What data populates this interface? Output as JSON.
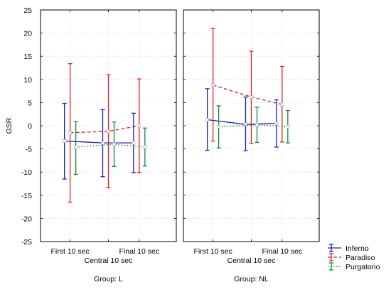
{
  "chart_data": {
    "type": "line",
    "ylabel": "GSR",
    "ylim": [
      -25,
      25
    ],
    "yticks": [
      -25,
      -20,
      -15,
      -10,
      -5,
      0,
      5,
      10,
      15,
      20,
      25
    ],
    "grid": true,
    "categories": [
      "First 10 sec",
      "Central 10 sec",
      "Final 10 sec"
    ],
    "xlabel": "Central 10 sec",
    "legend": {
      "placement": "bottom-right",
      "entries": [
        "Inferno",
        "Paradiso",
        "Purgatorio"
      ]
    },
    "series_styles": {
      "Inferno": {
        "color": "#1a1acc",
        "dash": "solid"
      },
      "Paradiso": {
        "color": "#dd2222",
        "dash": "dashed"
      },
      "Purgatorio": {
        "color": "#118833",
        "dash": "dotted"
      }
    },
    "panels": [
      {
        "group_label": "Group: L",
        "series": [
          {
            "name": "Inferno",
            "values": [
              -3.3,
              -3.7,
              -3.7
            ],
            "upper": [
              4.8,
              3.5,
              2.7
            ],
            "lower": [
              -11.5,
              -11.0,
              -10.1
            ]
          },
          {
            "name": "Paradiso",
            "values": [
              -1.5,
              -1.2,
              0.0
            ],
            "upper": [
              13.4,
              11.0,
              10.1
            ],
            "lower": [
              -16.5,
              -13.4,
              -10.1
            ]
          },
          {
            "name": "Purgatorio",
            "values": [
              -4.6,
              -4.0,
              -4.6
            ],
            "upper": [
              0.9,
              0.8,
              -0.5
            ],
            "lower": [
              -10.5,
              -8.8,
              -8.7
            ]
          }
        ]
      },
      {
        "group_label": "Group: NL",
        "series": [
          {
            "name": "Inferno",
            "values": [
              1.3,
              0.3,
              0.5
            ],
            "upper": [
              8.0,
              6.2,
              5.6
            ],
            "lower": [
              -5.3,
              -5.4,
              -4.6
            ]
          },
          {
            "name": "Paradiso",
            "values": [
              8.8,
              6.2,
              4.6
            ],
            "upper": [
              21.0,
              16.1,
              12.8
            ],
            "lower": [
              -3.3,
              -3.8,
              -3.5
            ]
          },
          {
            "name": "Purgatorio",
            "values": [
              -0.2,
              0.2,
              -0.2
            ],
            "upper": [
              4.3,
              4.0,
              3.3
            ],
            "lower": [
              -4.8,
              -3.6,
              -3.7
            ]
          }
        ]
      }
    ]
  }
}
